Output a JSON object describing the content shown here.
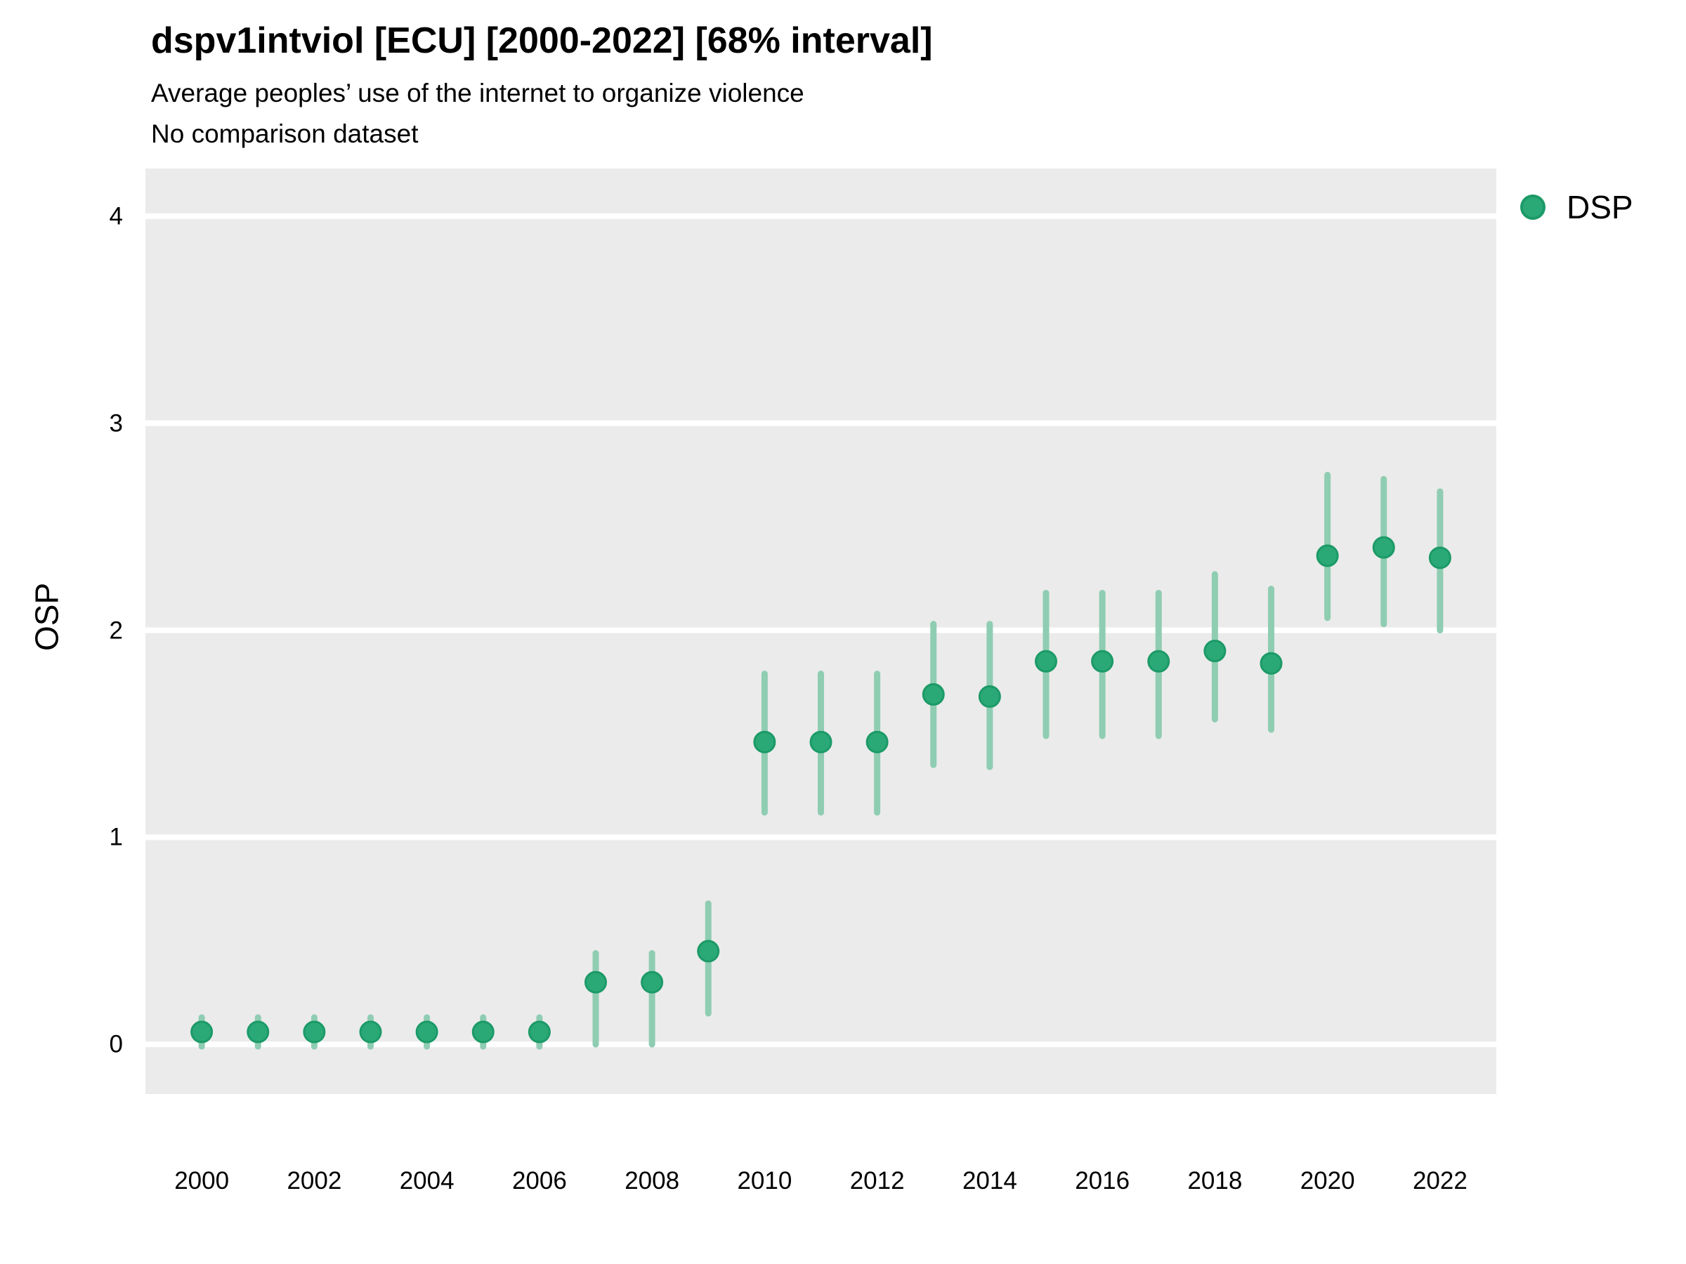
{
  "header": {
    "title": "dspv1intviol [ECU] [2000-2022] [68% interval]",
    "subtitle1": "Average peoples’ use of the internet to organize violence",
    "subtitle2": "No comparison dataset"
  },
  "legend": {
    "label": "DSP",
    "position": "right-top"
  },
  "colors": {
    "point_fill": "#2aa977",
    "point_stroke": "#1c9a67",
    "interval_line": "#8fcdb2",
    "panel_background": "#ebebeb",
    "gridline": "#ffffff",
    "text": "#000000"
  },
  "chart_data": {
    "type": "scatter",
    "title": "dspv1intviol [ECU] [2000-2022] [68% interval]",
    "subtitle": "Average peoples’ use of the internet to organize violence",
    "note": "No comparison dataset",
    "xlabel": "",
    "ylabel": "OSP",
    "interval": "68%",
    "grid": "horizontal-major-only",
    "legend_position": "right-top",
    "xlim": [
      1999,
      2023
    ],
    "ylim": [
      -0.24,
      4.23
    ],
    "xticks": [
      2000,
      2002,
      2004,
      2006,
      2008,
      2010,
      2012,
      2014,
      2016,
      2018,
      2020,
      2022
    ],
    "yticks": [
      0,
      1,
      2,
      3,
      4
    ],
    "x": [
      2000,
      2001,
      2002,
      2003,
      2004,
      2005,
      2006,
      2007,
      2008,
      2009,
      2010,
      2011,
      2012,
      2013,
      2014,
      2015,
      2016,
      2017,
      2018,
      2019,
      2020,
      2021,
      2022
    ],
    "series": [
      {
        "name": "DSP",
        "values": [
          0.06,
          0.06,
          0.06,
          0.06,
          0.06,
          0.06,
          0.06,
          0.3,
          0.3,
          0.45,
          1.46,
          1.46,
          1.46,
          1.69,
          1.68,
          1.85,
          1.85,
          1.85,
          1.9,
          1.84,
          2.36,
          2.4,
          2.35
        ],
        "interval_low": [
          -0.01,
          -0.01,
          -0.01,
          -0.01,
          -0.01,
          -0.01,
          -0.01,
          0.0,
          0.0,
          0.15,
          1.12,
          1.12,
          1.12,
          1.35,
          1.34,
          1.49,
          1.49,
          1.49,
          1.57,
          1.52,
          2.06,
          2.03,
          2.0
        ],
        "interval_high": [
          0.13,
          0.13,
          0.13,
          0.13,
          0.13,
          0.13,
          0.13,
          0.44,
          0.44,
          0.68,
          1.79,
          1.79,
          1.79,
          2.03,
          2.03,
          2.18,
          2.18,
          2.18,
          2.27,
          2.2,
          2.75,
          2.73,
          2.67
        ]
      }
    ]
  }
}
